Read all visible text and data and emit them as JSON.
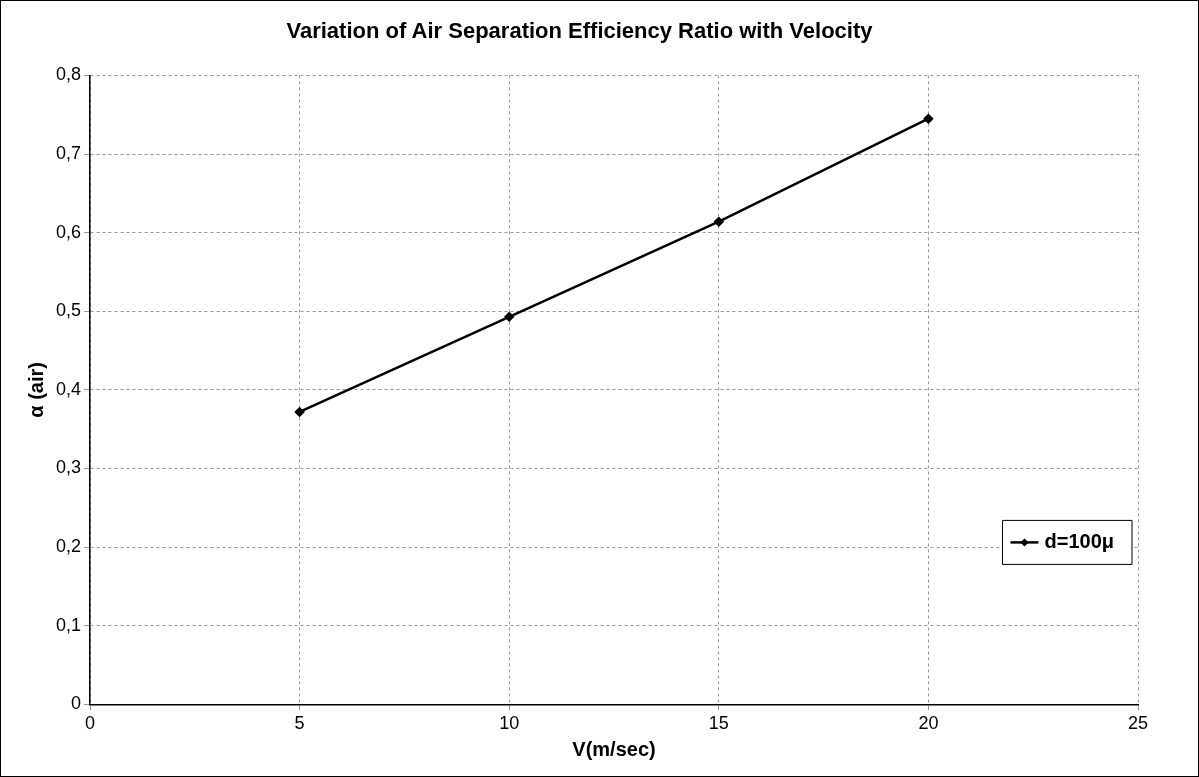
{
  "chart_data": {
    "type": "line",
    "title": "Variation of Air Separation Efficiency Ratio with Velocity",
    "xlabel": "V(m/sec)",
    "ylabel": "α (air)",
    "x": [
      5,
      10,
      15,
      20
    ],
    "series": [
      {
        "name": "d=100μ",
        "color": "#000000",
        "values": [
          0.372,
          0.493,
          0.614,
          0.745
        ]
      }
    ],
    "xlim": [
      0,
      25
    ],
    "xticks": [
      0,
      5,
      10,
      15,
      20,
      25
    ],
    "ylim": [
      0,
      0.8
    ],
    "yticks": [
      0,
      {
        "value": 0.1,
        "label": "0,1"
      },
      {
        "value": 0.2,
        "label": "0,2"
      },
      {
        "value": 0.3,
        "label": "0,3"
      },
      {
        "value": 0.4,
        "label": "0,4"
      },
      {
        "value": 0.5,
        "label": "0,5"
      },
      {
        "value": 0.6,
        "label": "0,6"
      },
      {
        "value": 0.7,
        "label": "0,7"
      },
      {
        "value": 0.8,
        "label": "0,8"
      }
    ],
    "grid": true,
    "legend": "bottom right",
    "marker": "diamond",
    "line_style": "solid"
  }
}
